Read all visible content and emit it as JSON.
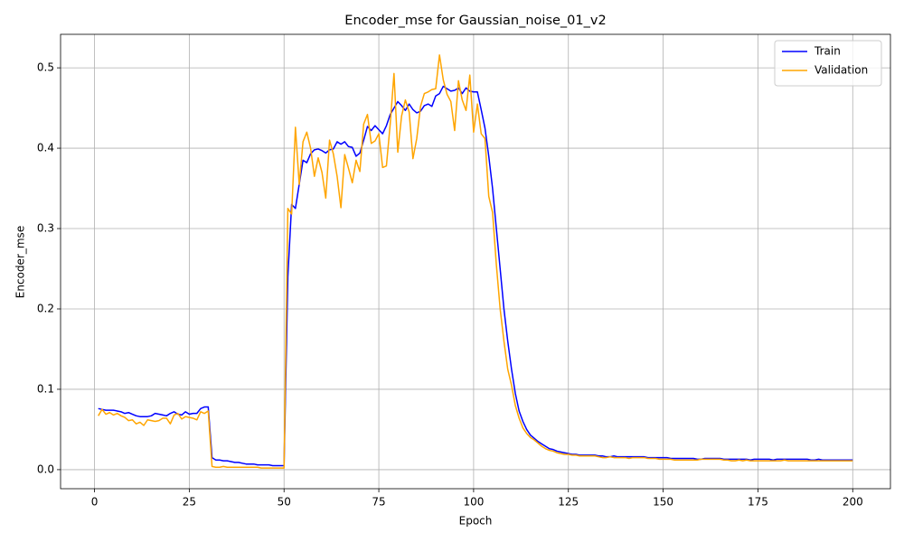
{
  "chart_data": {
    "type": "line",
    "title": "Encoder_mse for Gaussian_noise_01_v2",
    "xlabel": "Epoch",
    "ylabel": "Encoder_mse",
    "x": [
      1,
      2,
      3,
      4,
      5,
      6,
      7,
      8,
      9,
      10,
      11,
      12,
      13,
      14,
      15,
      16,
      17,
      18,
      19,
      20,
      21,
      22,
      23,
      24,
      25,
      26,
      27,
      28,
      29,
      30,
      31,
      32,
      33,
      34,
      35,
      36,
      37,
      38,
      39,
      40,
      41,
      42,
      43,
      44,
      45,
      46,
      47,
      48,
      49,
      50,
      51,
      52,
      53,
      54,
      55,
      56,
      57,
      58,
      59,
      60,
      61,
      62,
      63,
      64,
      65,
      66,
      67,
      68,
      69,
      70,
      71,
      72,
      73,
      74,
      75,
      76,
      77,
      78,
      79,
      80,
      81,
      82,
      83,
      84,
      85,
      86,
      87,
      88,
      89,
      90,
      91,
      92,
      93,
      94,
      95,
      96,
      97,
      98,
      99,
      100,
      101,
      102,
      103,
      104,
      105,
      106,
      107,
      108,
      109,
      110,
      111,
      112,
      113,
      114,
      115,
      116,
      117,
      118,
      119,
      120,
      121,
      122,
      123,
      124,
      125,
      126,
      127,
      128,
      129,
      130,
      131,
      132,
      133,
      134,
      135,
      136,
      137,
      138,
      139,
      140,
      141,
      142,
      143,
      144,
      145,
      146,
      147,
      148,
      149,
      150,
      151,
      152,
      153,
      154,
      155,
      156,
      157,
      158,
      159,
      160,
      161,
      162,
      163,
      164,
      165,
      166,
      167,
      168,
      169,
      170,
      171,
      172,
      173,
      174,
      175,
      176,
      177,
      178,
      179,
      180,
      181,
      182,
      183,
      184,
      185,
      186,
      187,
      188,
      189,
      190,
      191,
      192,
      193,
      194,
      195,
      196,
      197,
      198,
      199,
      200
    ],
    "series": [
      {
        "name": "Train",
        "color": "#0000ff",
        "values": [
          0.076,
          0.075,
          0.074,
          0.074,
          0.074,
          0.073,
          0.072,
          0.07,
          0.071,
          0.069,
          0.067,
          0.066,
          0.066,
          0.066,
          0.067,
          0.07,
          0.069,
          0.068,
          0.067,
          0.07,
          0.072,
          0.069,
          0.068,
          0.072,
          0.069,
          0.07,
          0.07,
          0.076,
          0.078,
          0.078,
          0.015,
          0.012,
          0.012,
          0.011,
          0.011,
          0.01,
          0.009,
          0.009,
          0.008,
          0.007,
          0.007,
          0.007,
          0.006,
          0.006,
          0.006,
          0.006,
          0.005,
          0.005,
          0.005,
          0.005,
          0.24,
          0.33,
          0.325,
          0.355,
          0.385,
          0.382,
          0.393,
          0.398,
          0.399,
          0.397,
          0.394,
          0.398,
          0.399,
          0.408,
          0.405,
          0.408,
          0.402,
          0.401,
          0.39,
          0.394,
          0.41,
          0.427,
          0.422,
          0.428,
          0.423,
          0.418,
          0.428,
          0.442,
          0.45,
          0.458,
          0.453,
          0.447,
          0.455,
          0.448,
          0.444,
          0.446,
          0.453,
          0.455,
          0.452,
          0.465,
          0.468,
          0.477,
          0.474,
          0.471,
          0.472,
          0.475,
          0.468,
          0.475,
          0.471,
          0.47,
          0.47,
          0.448,
          0.425,
          0.39,
          0.35,
          0.3,
          0.25,
          0.2,
          0.16,
          0.125,
          0.095,
          0.073,
          0.06,
          0.05,
          0.043,
          0.039,
          0.035,
          0.032,
          0.029,
          0.026,
          0.025,
          0.023,
          0.022,
          0.021,
          0.02,
          0.019,
          0.019,
          0.018,
          0.018,
          0.018,
          0.018,
          0.018,
          0.017,
          0.017,
          0.016,
          0.016,
          0.017,
          0.016,
          0.016,
          0.016,
          0.016,
          0.016,
          0.016,
          0.016,
          0.016,
          0.015,
          0.015,
          0.015,
          0.015,
          0.015,
          0.015,
          0.014,
          0.014,
          0.014,
          0.014,
          0.014,
          0.014,
          0.014,
          0.013,
          0.013,
          0.014,
          0.014,
          0.014,
          0.014,
          0.014,
          0.013,
          0.013,
          0.013,
          0.013,
          0.013,
          0.013,
          0.013,
          0.012,
          0.013,
          0.013,
          0.013,
          0.013,
          0.013,
          0.012,
          0.013,
          0.013,
          0.013,
          0.013,
          0.013,
          0.013,
          0.013,
          0.013,
          0.013,
          0.012,
          0.012,
          0.013,
          0.012,
          0.012,
          0.012,
          0.012,
          0.012,
          0.012,
          0.012,
          0.012,
          0.012
        ]
      },
      {
        "name": "Validation",
        "color": "#ffa500",
        "values": [
          0.067,
          0.075,
          0.069,
          0.071,
          0.068,
          0.07,
          0.067,
          0.065,
          0.061,
          0.062,
          0.057,
          0.059,
          0.055,
          0.062,
          0.061,
          0.06,
          0.061,
          0.064,
          0.064,
          0.057,
          0.068,
          0.07,
          0.063,
          0.066,
          0.065,
          0.064,
          0.062,
          0.072,
          0.07,
          0.073,
          0.004,
          0.003,
          0.003,
          0.004,
          0.003,
          0.003,
          0.003,
          0.003,
          0.003,
          0.003,
          0.003,
          0.003,
          0.003,
          0.002,
          0.002,
          0.002,
          0.002,
          0.002,
          0.002,
          0.002,
          0.325,
          0.318,
          0.426,
          0.355,
          0.408,
          0.42,
          0.4,
          0.365,
          0.388,
          0.37,
          0.338,
          0.41,
          0.393,
          0.365,
          0.326,
          0.392,
          0.375,
          0.357,
          0.385,
          0.371,
          0.43,
          0.442,
          0.406,
          0.409,
          0.418,
          0.376,
          0.378,
          0.43,
          0.493,
          0.395,
          0.44,
          0.46,
          0.445,
          0.387,
          0.412,
          0.452,
          0.468,
          0.47,
          0.473,
          0.474,
          0.516,
          0.485,
          0.467,
          0.458,
          0.422,
          0.484,
          0.46,
          0.447,
          0.491,
          0.42,
          0.455,
          0.418,
          0.412,
          0.34,
          0.32,
          0.255,
          0.2,
          0.16,
          0.125,
          0.105,
          0.08,
          0.064,
          0.052,
          0.045,
          0.04,
          0.037,
          0.033,
          0.029,
          0.026,
          0.024,
          0.023,
          0.021,
          0.02,
          0.019,
          0.019,
          0.018,
          0.018,
          0.017,
          0.017,
          0.017,
          0.017,
          0.017,
          0.016,
          0.015,
          0.015,
          0.016,
          0.015,
          0.015,
          0.015,
          0.015,
          0.014,
          0.015,
          0.015,
          0.015,
          0.015,
          0.014,
          0.014,
          0.014,
          0.013,
          0.013,
          0.013,
          0.013,
          0.012,
          0.012,
          0.012,
          0.012,
          0.012,
          0.012,
          0.012,
          0.013,
          0.013,
          0.013,
          0.013,
          0.013,
          0.013,
          0.012,
          0.012,
          0.011,
          0.011,
          0.012,
          0.011,
          0.012,
          0.011,
          0.011,
          0.011,
          0.011,
          0.011,
          0.011,
          0.011,
          0.011,
          0.011,
          0.012,
          0.011,
          0.011,
          0.011,
          0.011,
          0.011,
          0.011,
          0.011,
          0.011,
          0.011,
          0.011,
          0.011,
          0.011,
          0.011,
          0.011,
          0.011,
          0.011,
          0.011,
          0.011
        ]
      }
    ],
    "xlim": [
      -8.95,
      209.95
    ],
    "ylim": [
      -0.0237,
      0.5417
    ],
    "xticks": [
      0,
      25,
      50,
      75,
      100,
      125,
      150,
      175,
      200
    ],
    "yticks": [
      {
        "value": 0,
        "label": "0.0"
      },
      0.1,
      0.2,
      0.3,
      0.4,
      0.5
    ],
    "grid": true,
    "legend": "upper right"
  }
}
